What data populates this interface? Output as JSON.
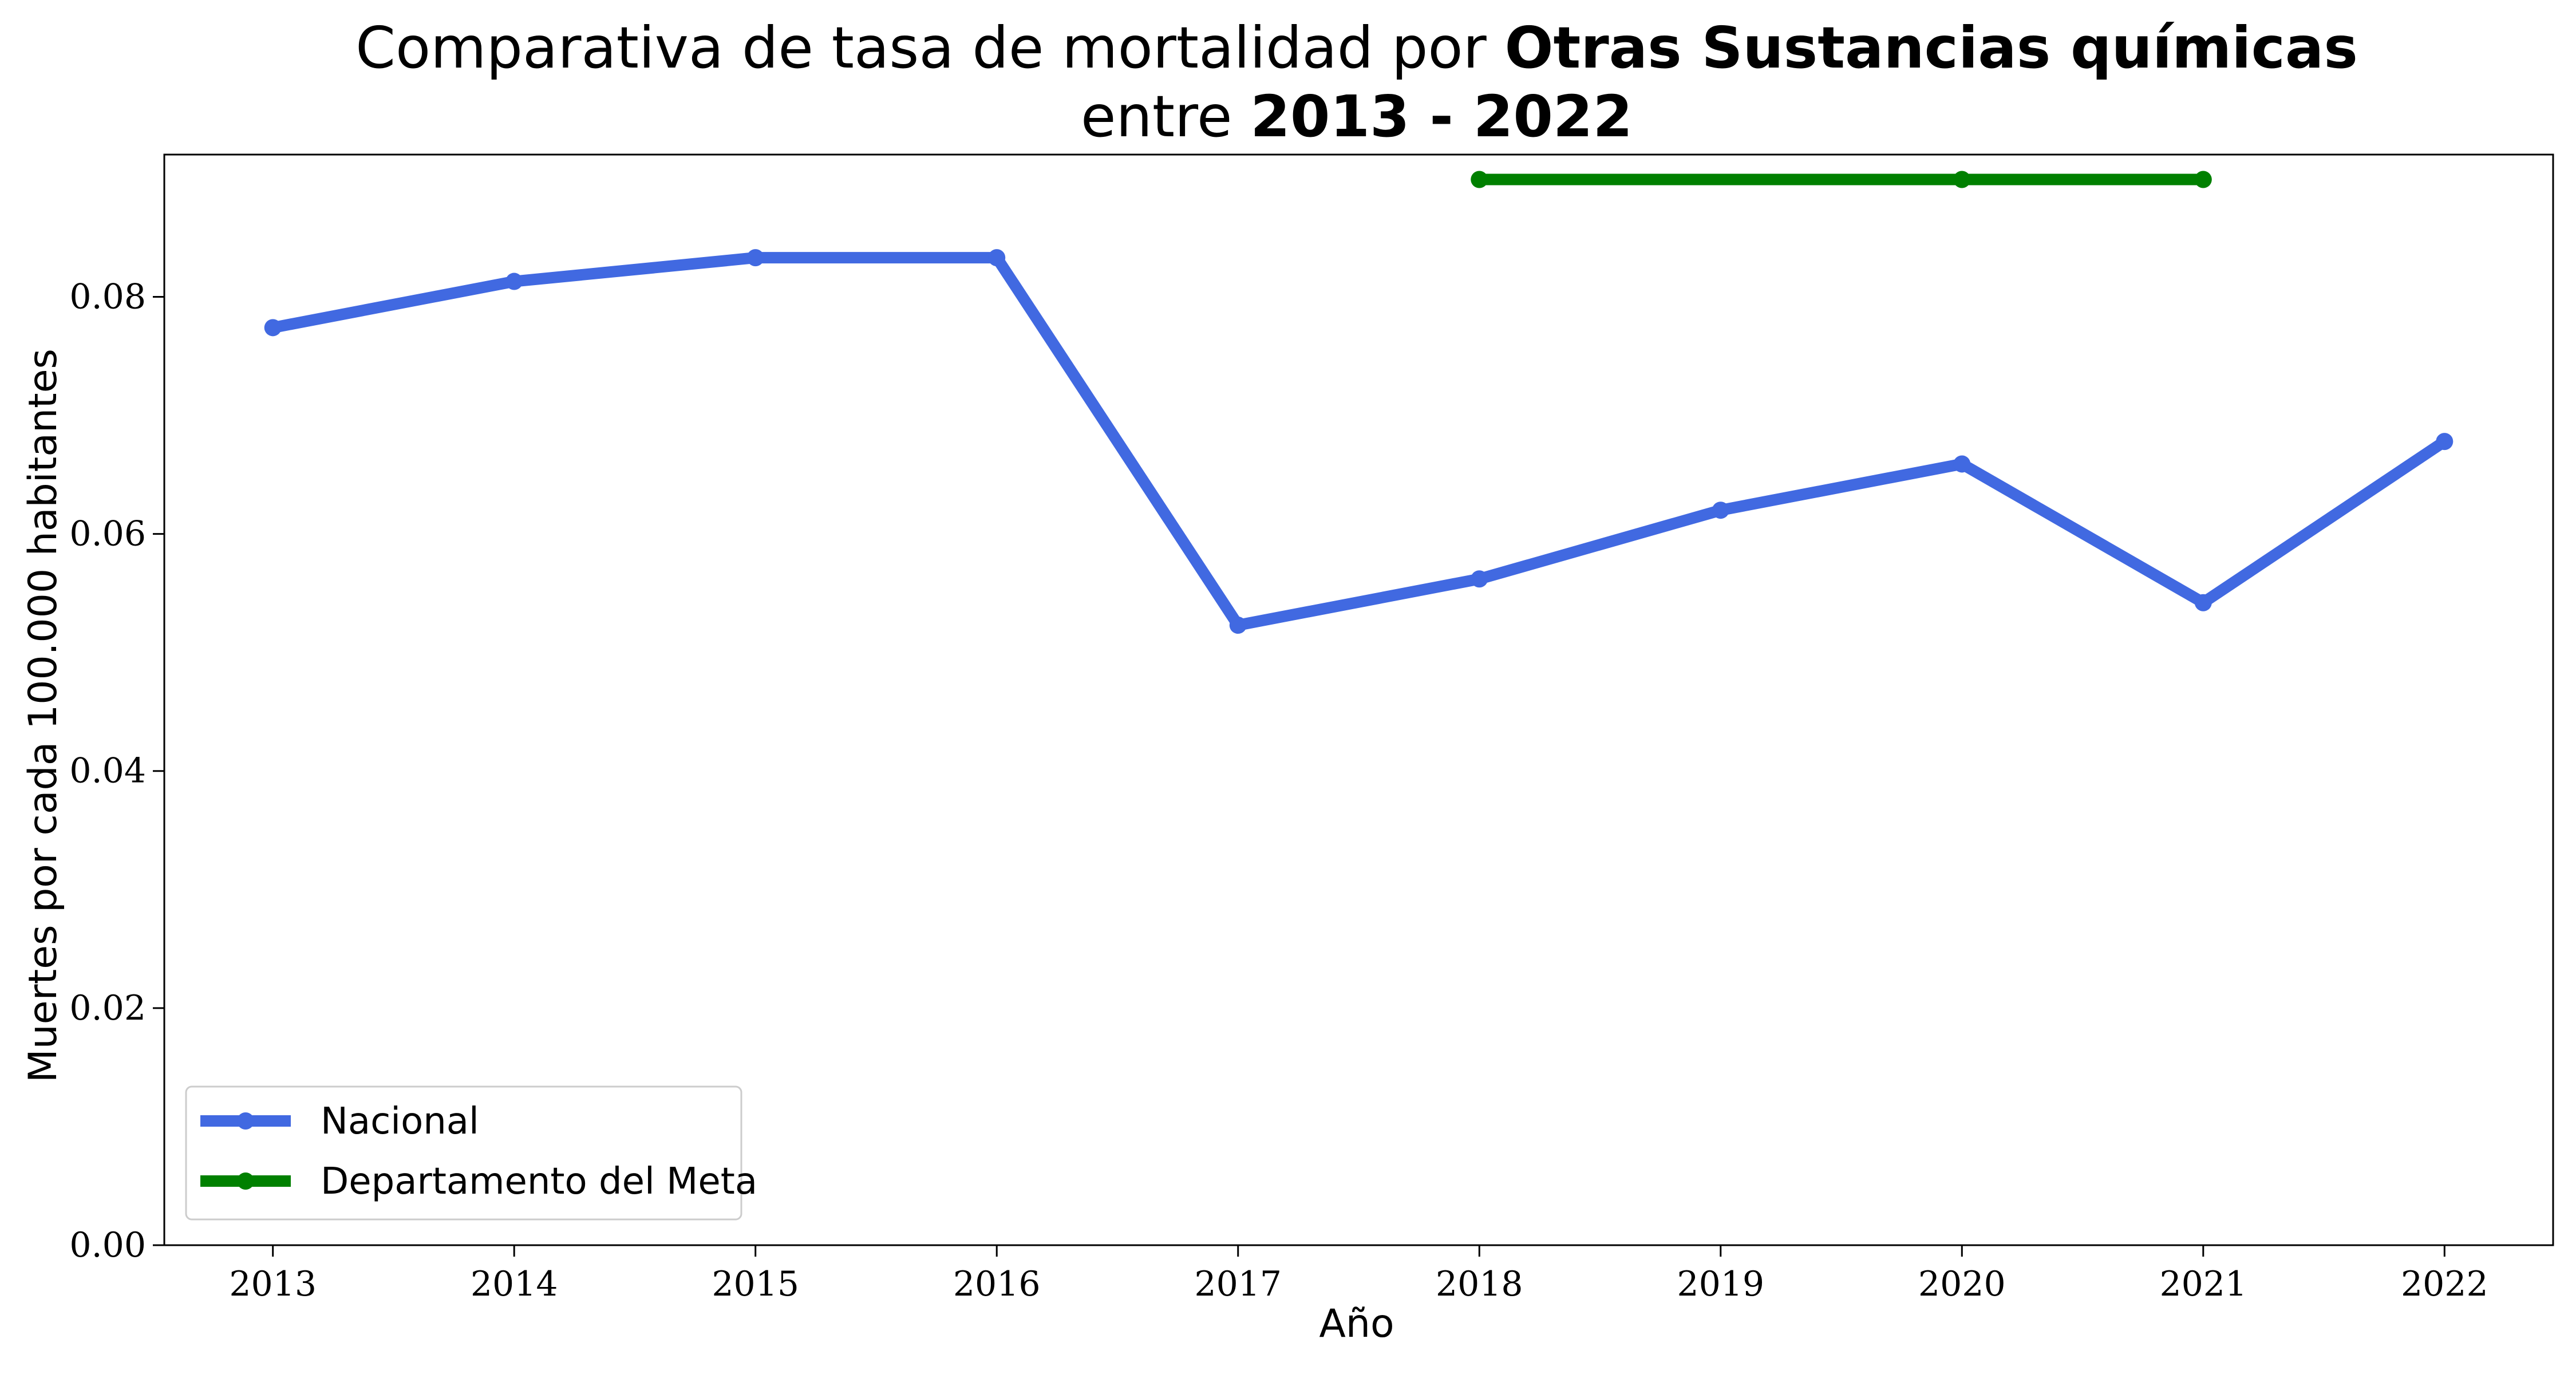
{
  "chart_data": {
    "type": "line",
    "title": {
      "line1_prefix": "Comparativa de tasa de mortalidad por ",
      "line1_bold": "Otras Sustancias químicas",
      "line2_prefix": "entre ",
      "line2_bold": "2013 - 2022"
    },
    "xlabel": "Año",
    "ylabel": "Muertes por cada 100.000 habitantes",
    "x": [
      2013,
      2014,
      2015,
      2016,
      2017,
      2018,
      2019,
      2020,
      2021,
      2022
    ],
    "xlim": [
      2012.55,
      2022.45
    ],
    "ylim": [
      0,
      0.092
    ],
    "yticks": [
      0.0,
      0.02,
      0.04,
      0.06,
      0.08
    ],
    "ytick_labels": [
      "0.00",
      "0.02",
      "0.04",
      "0.06",
      "0.08"
    ],
    "xtick_labels": [
      "2013",
      "2014",
      "2015",
      "2016",
      "2017",
      "2018",
      "2019",
      "2020",
      "2021",
      "2022"
    ],
    "grid": false,
    "legend_position": "bottom-left",
    "series": [
      {
        "name": "Nacional",
        "color": "#4169E1",
        "points": [
          [
            2013,
            0.0774
          ],
          [
            2014,
            0.0813
          ],
          [
            2015,
            0.0833
          ],
          [
            2016,
            0.0833
          ],
          [
            2017,
            0.0523
          ],
          [
            2018,
            0.0562
          ],
          [
            2019,
            0.062
          ],
          [
            2020,
            0.0659
          ],
          [
            2021,
            0.0542
          ],
          [
            2022,
            0.0678
          ]
        ]
      },
      {
        "name": "Departamento del Meta",
        "color": "#008000",
        "points": [
          [
            2018,
            0.0899
          ],
          [
            2020,
            0.0899
          ],
          [
            2021,
            0.0899
          ]
        ]
      }
    ]
  }
}
